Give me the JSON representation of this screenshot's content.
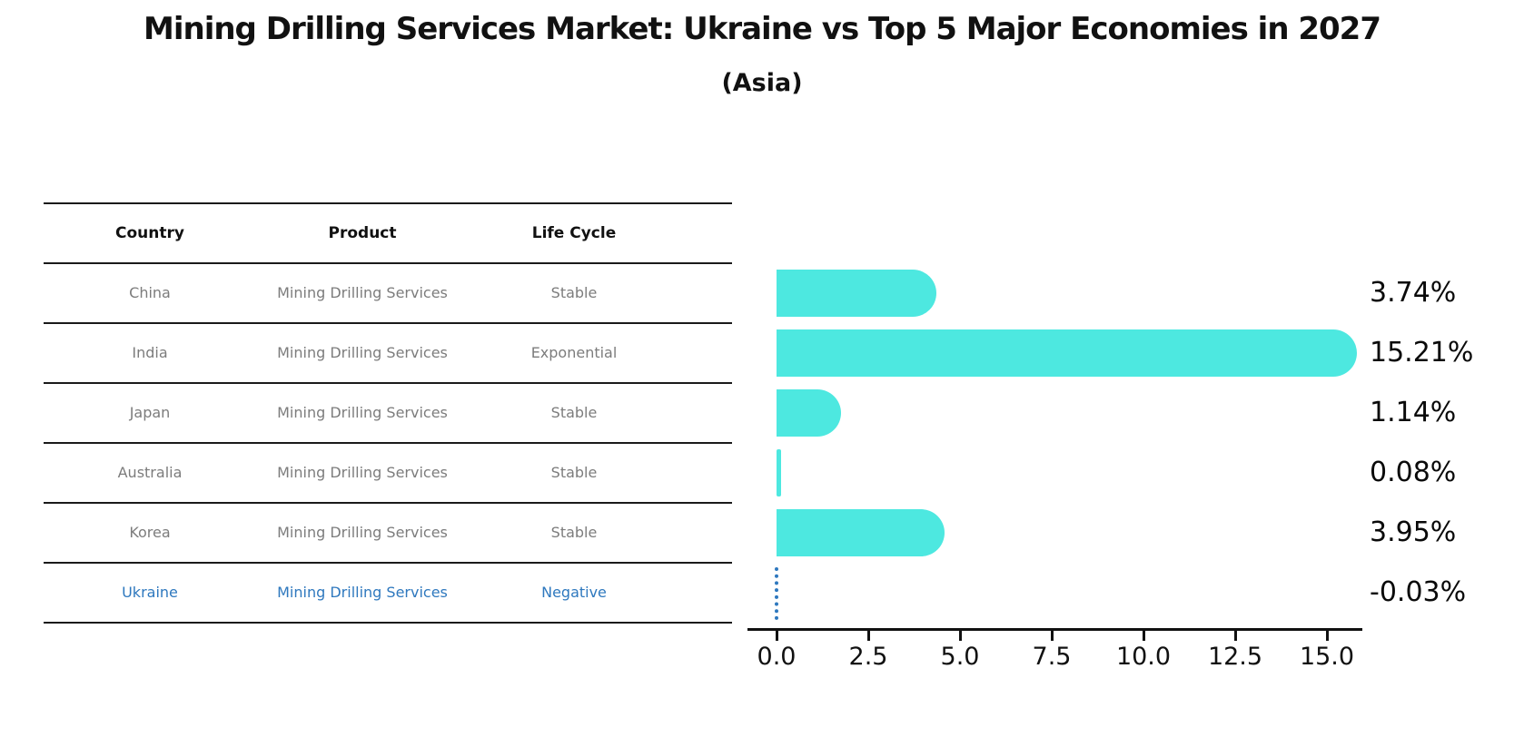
{
  "page": {
    "title": "Mining Drilling Services Market: Ukraine vs Top 5 Major Economies in 2027",
    "subtitle": "(Asia)"
  },
  "colors": {
    "bar": "#4DE8E0",
    "highlight": "#2E78BE",
    "text": "#111111",
    "muted": "#7c7c7c"
  },
  "table": {
    "headers": [
      "Country",
      "Product",
      "Life Cycle"
    ],
    "rows": [
      {
        "country": "China",
        "product": "Mining Drilling Services",
        "life_cycle": "Stable",
        "highlighted": false
      },
      {
        "country": "India",
        "product": "Mining Drilling Services",
        "life_cycle": "Exponential",
        "highlighted": false
      },
      {
        "country": "Japan",
        "product": "Mining Drilling Services",
        "life_cycle": "Stable",
        "highlighted": false
      },
      {
        "country": "Australia",
        "product": "Mining Drilling Services",
        "life_cycle": "Stable",
        "highlighted": false
      },
      {
        "country": "Korea",
        "product": "Mining Drilling Services",
        "life_cycle": "Stable",
        "highlighted": false
      },
      {
        "country": "Ukraine",
        "product": "Mining Drilling Services",
        "life_cycle": "Negative",
        "highlighted": true
      }
    ]
  },
  "chart_data": {
    "type": "bar",
    "orientation": "horizontal",
    "categories": [
      "China",
      "India",
      "Japan",
      "Australia",
      "Korea",
      "Ukraine"
    ],
    "values": [
      3.74,
      15.21,
      1.14,
      0.08,
      3.95,
      -0.03
    ],
    "value_labels": [
      "3.74%",
      "15.21%",
      "1.14%",
      "0.08%",
      "3.95%",
      "-0.03%"
    ],
    "x_ticks": [
      0.0,
      2.5,
      5.0,
      7.5,
      10.0,
      12.5,
      15.0
    ],
    "x_tick_labels": [
      "0.0",
      "2.5",
      "5.0",
      "7.5",
      "10.0",
      "12.5",
      "15.0"
    ],
    "xlim": [
      0,
      15.9
    ],
    "grid": false,
    "legend": "none",
    "bar_color": "#4DE8E0",
    "negative_marker": "dotted-line"
  }
}
